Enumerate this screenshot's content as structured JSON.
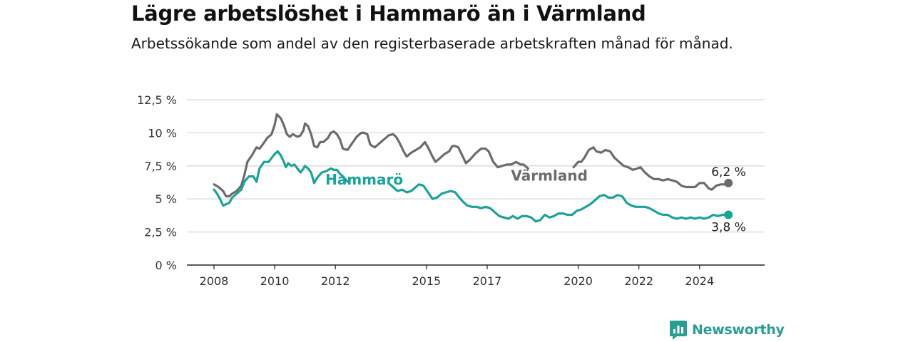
{
  "header": {
    "title": "Lägre arbetslöshet i Hammarö än i Värmland",
    "subtitle": "Arbetssökande som andel av den registerbaserade arbetskraften månad för månad."
  },
  "brand": {
    "name": "Newsworthy",
    "logo_icon": "newsworthy-logo-icon",
    "color": "#2a9d95"
  },
  "colors": {
    "hammaro": "#1aa398",
    "varmland": "#6c6c6e",
    "grid": "#d9d9d9",
    "axis": "#222222"
  },
  "chart_data": {
    "type": "line",
    "title": "Lägre arbetslöshet i Hammarö än i Värmland",
    "xlabel": "",
    "ylabel": "",
    "xlim": [
      2007.5,
      2025.6
    ],
    "ylim": [
      0,
      12.5
    ],
    "grid": true,
    "yticks": [
      {
        "value": 0,
        "label": "0 %"
      },
      {
        "value": 2.5,
        "label": "2,5 %"
      },
      {
        "value": 5,
        "label": "5 %"
      },
      {
        "value": 7.5,
        "label": "7,5 %"
      },
      {
        "value": 10,
        "label": "10 %"
      },
      {
        "value": 12.5,
        "label": "12,5 %"
      }
    ],
    "xticks": [
      {
        "value": 2008,
        "label": "2008"
      },
      {
        "value": 2010,
        "label": "2010"
      },
      {
        "value": 2012,
        "label": "2012"
      },
      {
        "value": 2015,
        "label": "2015"
      },
      {
        "value": 2017,
        "label": "2017"
      },
      {
        "value": 2020,
        "label": "2020"
      },
      {
        "value": 2022,
        "label": "2022"
      },
      {
        "value": 2024,
        "label": "2024"
      }
    ],
    "series": [
      {
        "name": "Värmland",
        "color": "#6c6c6e",
        "end_label": "6,2 %",
        "points": [
          [
            2008.0,
            6.1
          ],
          [
            2008.15,
            5.9
          ],
          [
            2008.3,
            5.6
          ],
          [
            2008.4,
            5.2
          ],
          [
            2008.5,
            5.2
          ],
          [
            2008.6,
            5.4
          ],
          [
            2008.75,
            5.6
          ],
          [
            2008.9,
            6.0
          ],
          [
            2009.0,
            6.8
          ],
          [
            2009.1,
            7.8
          ],
          [
            2009.25,
            8.3
          ],
          [
            2009.4,
            8.9
          ],
          [
            2009.5,
            8.8
          ],
          [
            2009.6,
            9.1
          ],
          [
            2009.75,
            9.6
          ],
          [
            2009.9,
            9.9
          ],
          [
            2010.0,
            10.6
          ],
          [
            2010.07,
            11.4
          ],
          [
            2010.2,
            11.1
          ],
          [
            2010.3,
            10.6
          ],
          [
            2010.4,
            9.9
          ],
          [
            2010.5,
            9.7
          ],
          [
            2010.6,
            9.9
          ],
          [
            2010.75,
            9.7
          ],
          [
            2010.85,
            9.8
          ],
          [
            2010.95,
            10.2
          ],
          [
            2011.0,
            10.7
          ],
          [
            2011.1,
            10.5
          ],
          [
            2011.2,
            9.9
          ],
          [
            2011.3,
            9.0
          ],
          [
            2011.4,
            8.9
          ],
          [
            2011.5,
            9.3
          ],
          [
            2011.6,
            9.3
          ],
          [
            2011.75,
            9.6
          ],
          [
            2011.85,
            10.0
          ],
          [
            2011.95,
            10.1
          ],
          [
            2012.05,
            9.9
          ],
          [
            2012.15,
            9.5
          ],
          [
            2012.25,
            8.8
          ],
          [
            2012.4,
            8.7
          ],
          [
            2012.55,
            9.2
          ],
          [
            2012.7,
            9.7
          ],
          [
            2012.85,
            10.0
          ],
          [
            2012.95,
            10.0
          ],
          [
            2013.05,
            9.9
          ],
          [
            2013.15,
            9.1
          ],
          [
            2013.3,
            8.9
          ],
          [
            2013.45,
            9.2
          ],
          [
            2013.6,
            9.5
          ],
          [
            2013.75,
            9.8
          ],
          [
            2013.9,
            9.9
          ],
          [
            2014.0,
            9.7
          ],
          [
            2014.1,
            9.3
          ],
          [
            2014.25,
            8.6
          ],
          [
            2014.35,
            8.2
          ],
          [
            2014.5,
            8.5
          ],
          [
            2014.65,
            8.7
          ],
          [
            2014.8,
            8.9
          ],
          [
            2014.95,
            9.3
          ],
          [
            2015.05,
            8.9
          ],
          [
            2015.2,
            8.2
          ],
          [
            2015.3,
            7.8
          ],
          [
            2015.45,
            8.1
          ],
          [
            2015.6,
            8.4
          ],
          [
            2015.75,
            8.6
          ],
          [
            2015.85,
            9.0
          ],
          [
            2015.95,
            9.0
          ],
          [
            2016.05,
            8.9
          ],
          [
            2016.2,
            8.2
          ],
          [
            2016.3,
            7.7
          ],
          [
            2016.45,
            8.0
          ],
          [
            2016.6,
            8.4
          ],
          [
            2016.8,
            8.8
          ],
          [
            2016.95,
            8.8
          ],
          [
            2017.05,
            8.6
          ],
          [
            2017.2,
            7.8
          ],
          [
            2017.35,
            7.4
          ],
          [
            2017.5,
            7.5
          ],
          [
            2017.65,
            7.6
          ],
          [
            2017.8,
            7.6
          ],
          [
            2017.95,
            7.8
          ],
          [
            2018.1,
            7.6
          ],
          [
            2018.2,
            7.6
          ],
          [
            2018.35,
            7.3
          ],
          [
            2019.85,
            7.4
          ],
          [
            2020.0,
            7.8
          ],
          [
            2020.1,
            7.8
          ],
          [
            2020.2,
            8.1
          ],
          [
            2020.35,
            8.7
          ],
          [
            2020.5,
            8.9
          ],
          [
            2020.6,
            8.6
          ],
          [
            2020.75,
            8.5
          ],
          [
            2020.9,
            8.7
          ],
          [
            2021.05,
            8.6
          ],
          [
            2021.2,
            8.1
          ],
          [
            2021.35,
            7.8
          ],
          [
            2021.5,
            7.5
          ],
          [
            2021.65,
            7.4
          ],
          [
            2021.8,
            7.2
          ],
          [
            2021.95,
            7.3
          ],
          [
            2022.05,
            7.4
          ],
          [
            2022.2,
            7.0
          ],
          [
            2022.35,
            6.7
          ],
          [
            2022.5,
            6.5
          ],
          [
            2022.65,
            6.5
          ],
          [
            2022.8,
            6.4
          ],
          [
            2022.95,
            6.5
          ],
          [
            2023.1,
            6.4
          ],
          [
            2023.25,
            6.3
          ],
          [
            2023.4,
            6.0
          ],
          [
            2023.55,
            5.9
          ],
          [
            2023.7,
            5.9
          ],
          [
            2023.85,
            5.9
          ],
          [
            2024.0,
            6.2
          ],
          [
            2024.15,
            6.2
          ],
          [
            2024.3,
            5.8
          ],
          [
            2024.4,
            5.7
          ],
          [
            2024.55,
            6.0
          ],
          [
            2024.7,
            6.1
          ],
          [
            2024.85,
            6.1
          ],
          [
            2024.95,
            6.2
          ]
        ]
      },
      {
        "name": "Hammarö",
        "color": "#1aa398",
        "end_label": "3,8 %",
        "points": [
          [
            2008.0,
            5.7
          ],
          [
            2008.1,
            5.4
          ],
          [
            2008.2,
            5.0
          ],
          [
            2008.3,
            4.5
          ],
          [
            2008.4,
            4.6
          ],
          [
            2008.5,
            4.7
          ],
          [
            2008.6,
            5.1
          ],
          [
            2008.75,
            5.4
          ],
          [
            2008.9,
            5.7
          ],
          [
            2009.0,
            6.3
          ],
          [
            2009.15,
            6.7
          ],
          [
            2009.3,
            6.7
          ],
          [
            2009.4,
            6.3
          ],
          [
            2009.5,
            7.3
          ],
          [
            2009.65,
            7.8
          ],
          [
            2009.8,
            7.8
          ],
          [
            2009.9,
            8.1
          ],
          [
            2010.0,
            8.4
          ],
          [
            2010.1,
            8.6
          ],
          [
            2010.2,
            8.3
          ],
          [
            2010.3,
            7.8
          ],
          [
            2010.37,
            7.4
          ],
          [
            2010.45,
            7.7
          ],
          [
            2010.55,
            7.5
          ],
          [
            2010.65,
            7.6
          ],
          [
            2010.75,
            7.3
          ],
          [
            2010.85,
            7.0
          ],
          [
            2010.95,
            7.3
          ],
          [
            2011.0,
            7.5
          ],
          [
            2011.1,
            7.3
          ],
          [
            2011.2,
            7.0
          ],
          [
            2011.3,
            6.2
          ],
          [
            2011.4,
            6.6
          ],
          [
            2011.55,
            7.0
          ],
          [
            2011.7,
            7.1
          ],
          [
            2011.85,
            7.3
          ],
          [
            2011.95,
            7.2
          ],
          [
            2012.05,
            7.2
          ],
          [
            2012.15,
            6.9
          ],
          [
            2012.25,
            6.7
          ],
          [
            2012.4,
            6.3
          ],
          [
            2013.8,
            6.1
          ],
          [
            2013.9,
            5.9
          ],
          [
            2014.05,
            5.6
          ],
          [
            2014.2,
            5.7
          ],
          [
            2014.35,
            5.5
          ],
          [
            2014.5,
            5.6
          ],
          [
            2014.6,
            5.8
          ],
          [
            2014.75,
            6.1
          ],
          [
            2014.9,
            6.0
          ],
          [
            2015.05,
            5.5
          ],
          [
            2015.2,
            5.0
          ],
          [
            2015.35,
            5.1
          ],
          [
            2015.5,
            5.4
          ],
          [
            2015.65,
            5.5
          ],
          [
            2015.8,
            5.6
          ],
          [
            2015.95,
            5.5
          ],
          [
            2016.05,
            5.2
          ],
          [
            2016.2,
            4.8
          ],
          [
            2016.35,
            4.5
          ],
          [
            2016.5,
            4.4
          ],
          [
            2016.65,
            4.4
          ],
          [
            2016.8,
            4.3
          ],
          [
            2016.95,
            4.4
          ],
          [
            2017.1,
            4.3
          ],
          [
            2017.25,
            4.0
          ],
          [
            2017.4,
            3.7
          ],
          [
            2017.55,
            3.6
          ],
          [
            2017.7,
            3.5
          ],
          [
            2017.85,
            3.7
          ],
          [
            2018.0,
            3.5
          ],
          [
            2018.15,
            3.7
          ],
          [
            2018.3,
            3.7
          ],
          [
            2018.45,
            3.6
          ],
          [
            2018.6,
            3.3
          ],
          [
            2018.75,
            3.4
          ],
          [
            2018.9,
            3.8
          ],
          [
            2019.05,
            3.6
          ],
          [
            2019.2,
            3.7
          ],
          [
            2019.35,
            3.9
          ],
          [
            2019.5,
            3.9
          ],
          [
            2019.65,
            3.8
          ],
          [
            2019.8,
            3.8
          ],
          [
            2019.95,
            4.1
          ],
          [
            2020.1,
            4.2
          ],
          [
            2020.25,
            4.4
          ],
          [
            2020.4,
            4.6
          ],
          [
            2020.55,
            4.9
          ],
          [
            2020.7,
            5.2
          ],
          [
            2020.85,
            5.3
          ],
          [
            2021.0,
            5.1
          ],
          [
            2021.15,
            5.1
          ],
          [
            2021.3,
            5.3
          ],
          [
            2021.45,
            5.2
          ],
          [
            2021.6,
            4.7
          ],
          [
            2021.75,
            4.5
          ],
          [
            2021.9,
            4.4
          ],
          [
            2022.05,
            4.4
          ],
          [
            2022.2,
            4.4
          ],
          [
            2022.35,
            4.3
          ],
          [
            2022.5,
            4.1
          ],
          [
            2022.65,
            3.9
          ],
          [
            2022.8,
            3.8
          ],
          [
            2022.95,
            3.8
          ],
          [
            2023.1,
            3.6
          ],
          [
            2023.25,
            3.5
          ],
          [
            2023.4,
            3.6
          ],
          [
            2023.55,
            3.5
          ],
          [
            2023.7,
            3.6
          ],
          [
            2023.85,
            3.5
          ],
          [
            2024.0,
            3.6
          ],
          [
            2024.15,
            3.5
          ],
          [
            2024.3,
            3.6
          ],
          [
            2024.45,
            3.8
          ],
          [
            2024.6,
            3.7
          ],
          [
            2024.75,
            3.8
          ],
          [
            2024.95,
            3.8
          ]
        ]
      }
    ],
    "annotations": [
      {
        "series": "Hammarö",
        "text": "Hammarö",
        "at": [
          2012.95,
          6.4
        ]
      },
      {
        "series": "Värmland",
        "text": "Värmland",
        "at": [
          2019.05,
          6.7
        ]
      }
    ]
  }
}
